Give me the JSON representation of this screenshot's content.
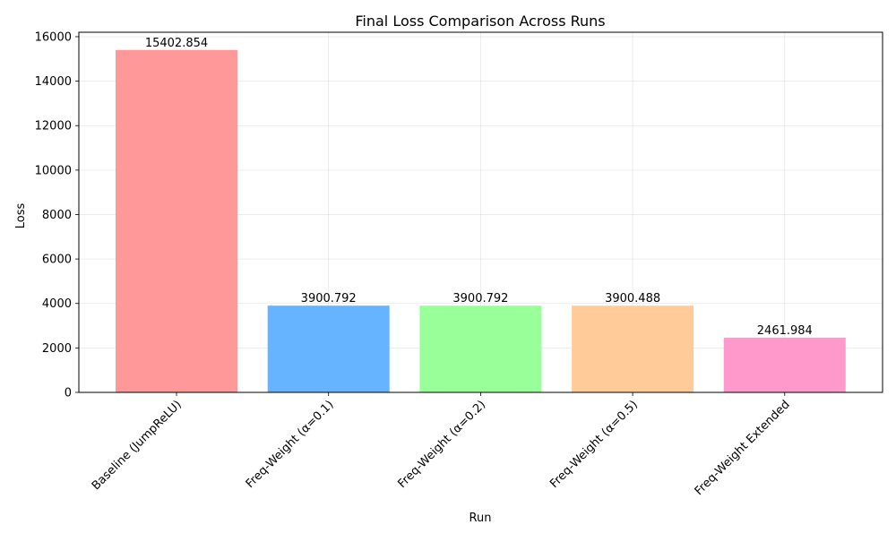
{
  "chart_data": {
    "type": "bar",
    "title": "Final Loss Comparison Across Runs",
    "xlabel": "Run",
    "ylabel": "Loss",
    "categories": [
      "Baseline (JumpReLU)",
      "Freq-Weight (α=0.1)",
      "Freq-Weight (α=0.2)",
      "Freq-Weight (α=0.5)",
      "Freq-Weight Extended"
    ],
    "values": [
      15402.854,
      3900.792,
      3900.792,
      3900.488,
      2461.984
    ],
    "value_labels": [
      "15402.854",
      "3900.792",
      "3900.792",
      "3900.488",
      "2461.984"
    ],
    "colors": [
      "#ff9999",
      "#66b3ff",
      "#99ff99",
      "#ffcc99",
      "#ff99cc"
    ],
    "ylim": [
      0,
      16200
    ],
    "yticks": [
      0,
      2000,
      4000,
      6000,
      8000,
      10000,
      12000,
      14000,
      16000
    ],
    "grid": true
  }
}
